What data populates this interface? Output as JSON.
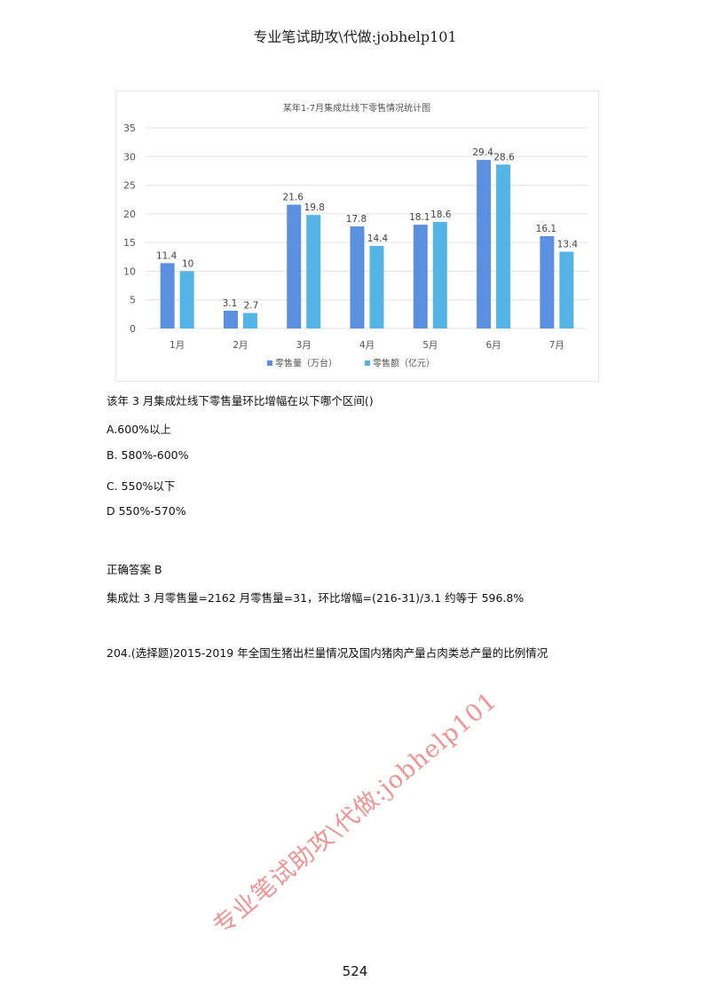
{
  "header": {
    "text": "专业笔试助攻\\代做:jobhelp101"
  },
  "watermark": {
    "text": "专业笔试助攻\\代做:jobhelp101",
    "color": "#f08080"
  },
  "chart_data": {
    "type": "bar",
    "title": "某年1-7月集成灶线下零售情况统计图",
    "categories": [
      "1月",
      "2月",
      "3月",
      "4月",
      "5月",
      "6月",
      "7月"
    ],
    "series": [
      {
        "name": "零售量（万台）",
        "color": "#5b8fe0",
        "values": [
          11.4,
          3.1,
          21.6,
          17.8,
          18.1,
          29.4,
          16.1
        ]
      },
      {
        "name": "零售额（亿元）",
        "color": "#55b4e6",
        "values": [
          10,
          2.7,
          19.8,
          14.4,
          18.6,
          28.6,
          13.4
        ]
      }
    ],
    "yticks": [
      0,
      5,
      10,
      15,
      20,
      25,
      30,
      35
    ],
    "ylim": [
      0,
      35
    ],
    "grid": true,
    "legend": "bottom"
  },
  "question": {
    "stem": "该年 3 月集成灶线下零售量环比增幅在以下哪个区间()",
    "options": [
      "A.600%以上",
      "B. 580%-600%",
      "C. 550%以下",
      "D 550%-570%"
    ],
    "answer": "正确答案 B",
    "explanation": "集成灶 3 月零售量=2162 月零售量=31，环比增幅=(216-31)/3.1 约等于 596.8%"
  },
  "next_question": "204.(选择题)2015-2019 年全国生猪出栏量情况及国内猪肉产量占肉类总产量的比例情况",
  "page_number": "524"
}
